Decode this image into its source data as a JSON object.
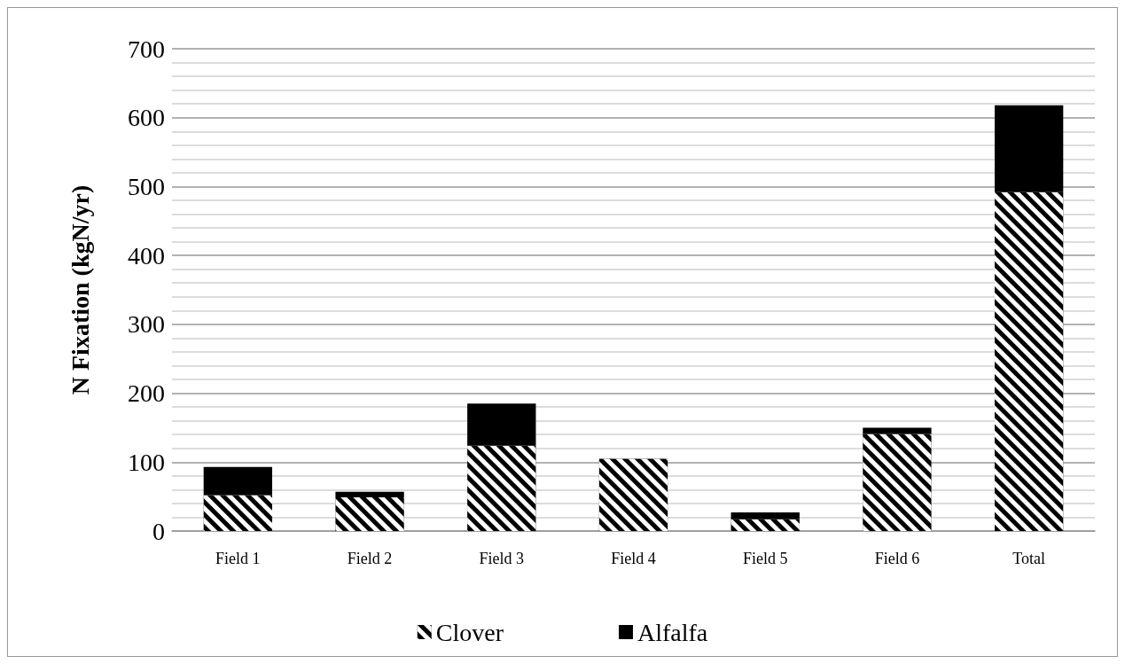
{
  "chart_data": {
    "type": "bar",
    "stacked": true,
    "ylabel": "N Fixation (kgN/yr)",
    "categories": [
      "Field 1",
      "Field 2",
      "Field 3",
      "Field 4",
      "Field 5",
      "Field 6",
      "Total"
    ],
    "series": [
      {
        "name": "Clover",
        "color": "#000000",
        "values": [
          52,
          49,
          124,
          105,
          17,
          141,
          492
        ]
      },
      {
        "name": "Alfalfa",
        "color": "#000000",
        "values": [
          41,
          8,
          61,
          0,
          10,
          9,
          126
        ]
      }
    ],
    "ylim": [
      0,
      700
    ],
    "yticks": [
      0,
      100,
      200,
      300,
      400,
      500,
      600,
      700
    ],
    "grid": "y",
    "legend": "bottom"
  }
}
